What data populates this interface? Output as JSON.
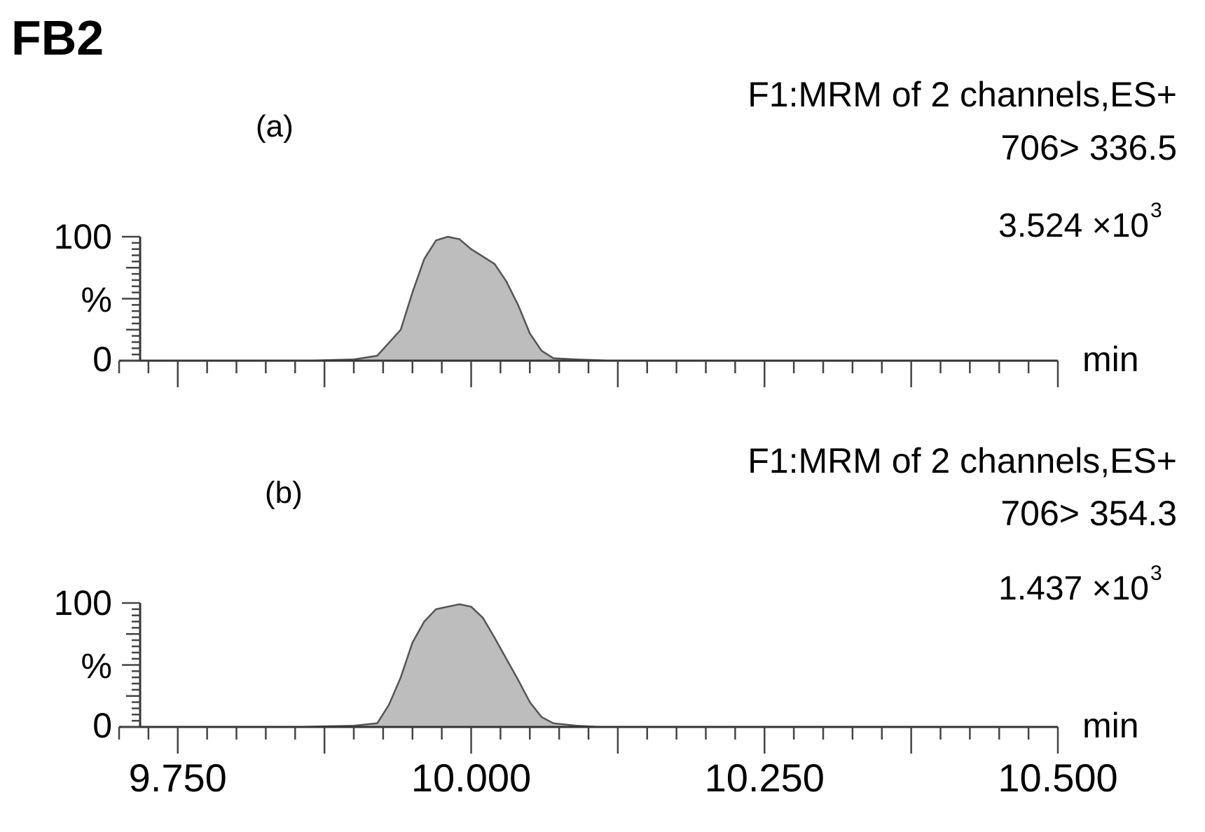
{
  "figure": {
    "title": "FB2",
    "x_unit": "min",
    "x_ticks": [
      "9.750",
      "10.000",
      "10.250",
      "10.500"
    ],
    "y_ticks": [
      "100",
      "0"
    ],
    "y_unit": "%"
  },
  "panels": [
    {
      "label": "(a)",
      "header_line1": "F1:MRM of 2 channels,ES+",
      "header_line2": "706> 336.5",
      "intensity_mantissa": "3.524 ×10",
      "intensity_exponent": "3",
      "peak_fill": "#bdbdbd",
      "stroke": "#555555"
    },
    {
      "label": "(b)",
      "header_line1": "F1:MRM of 2 channels,ES+",
      "header_line2": "706> 354.3",
      "intensity_mantissa": "1.437 ×10",
      "intensity_exponent": "3",
      "peak_fill": "#bdbdbd",
      "stroke": "#555555"
    }
  ],
  "chart_data": [
    {
      "type": "area",
      "title": "F1:MRM of 2 channels,ES+ 706> 336.5",
      "xlabel": "min",
      "ylabel": "%",
      "xlim": [
        9.7,
        10.5
      ],
      "ylim": [
        0,
        100
      ],
      "x_ticks": [
        9.75,
        10.0,
        10.25,
        10.5
      ],
      "grid": false,
      "series": [
        {
          "x": [
            9.7,
            9.86,
            9.9,
            9.92,
            9.94,
            9.95,
            9.96,
            9.97,
            9.98,
            9.99,
            10.0,
            10.01,
            10.02,
            10.03,
            10.04,
            10.05,
            10.06,
            10.07,
            10.09,
            10.12,
            10.5
          ],
          "y": [
            0,
            0,
            1,
            4,
            25,
            55,
            82,
            97,
            100,
            98,
            90,
            84,
            78,
            64,
            45,
            22,
            8,
            2,
            1,
            0,
            0
          ]
        }
      ]
    },
    {
      "type": "area",
      "title": "F1:MRM of 2 channels,ES+ 706> 354.3",
      "xlabel": "min",
      "ylabel": "%",
      "xlim": [
        9.7,
        10.5
      ],
      "ylim": [
        0,
        100
      ],
      "x_ticks": [
        9.75,
        10.0,
        10.25,
        10.5
      ],
      "grid": false,
      "series": [
        {
          "x": [
            9.7,
            9.85,
            9.9,
            9.92,
            9.93,
            9.94,
            9.95,
            9.96,
            9.97,
            9.98,
            9.99,
            10.0,
            10.01,
            10.02,
            10.03,
            10.04,
            10.05,
            10.06,
            10.07,
            10.09,
            10.11,
            10.5
          ],
          "y": [
            0,
            0,
            1,
            3,
            18,
            40,
            68,
            85,
            95,
            97,
            99,
            97,
            88,
            72,
            55,
            38,
            20,
            8,
            3,
            1,
            0,
            0
          ]
        }
      ]
    }
  ]
}
